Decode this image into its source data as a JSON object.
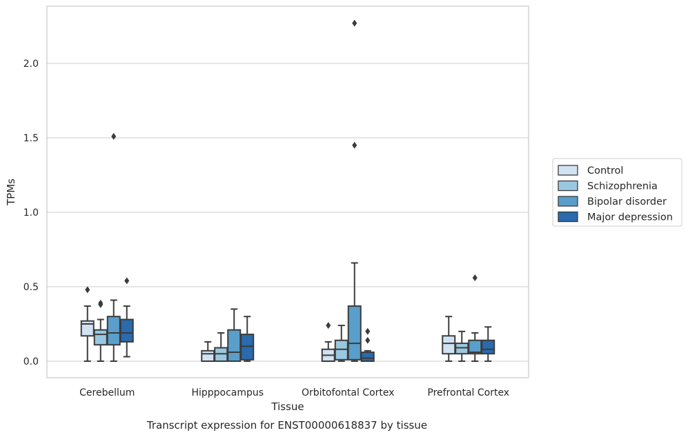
{
  "chart_data": {
    "type": "box",
    "title": "",
    "caption": "Transcript expression for ENST00000618837 by tissue",
    "xlabel": "Tissue",
    "ylabel": "TPMs",
    "ylim": [
      -0.11,
      2.4
    ],
    "yticks": [
      0.0,
      0.5,
      1.0,
      1.5,
      2.0
    ],
    "ytick_labels": [
      "0.0",
      "0.5",
      "1.0",
      "1.5",
      "2.0"
    ],
    "grid": "horizontal",
    "legend_position": "right",
    "categories": [
      "Cerebellum",
      "Hipppocampus",
      "Orbitofontal Cortex",
      "Prefrontal Cortex"
    ],
    "series": [
      {
        "name": "Control",
        "color": "#d1e2f2",
        "boxes": [
          {
            "whislo": 0.0,
            "q1": 0.17,
            "med": 0.25,
            "q3": 0.27,
            "whishi": 0.37,
            "fliers": [
              0.48
            ]
          },
          {
            "whislo": 0.0,
            "q1": 0.0,
            "med": 0.05,
            "q3": 0.07,
            "whishi": 0.13,
            "fliers": []
          },
          {
            "whislo": 0.0,
            "q1": 0.0,
            "med": 0.04,
            "q3": 0.08,
            "whishi": 0.13,
            "fliers": [
              0.24
            ]
          },
          {
            "whislo": 0.0,
            "q1": 0.05,
            "med": 0.12,
            "q3": 0.17,
            "whishi": 0.3,
            "fliers": []
          }
        ]
      },
      {
        "name": "Schizophrenia",
        "color": "#9ac8e0",
        "boxes": [
          {
            "whislo": 0.0,
            "q1": 0.11,
            "med": 0.18,
            "q3": 0.21,
            "whishi": 0.28,
            "fliers": [
              0.38,
              0.39
            ]
          },
          {
            "whislo": 0.0,
            "q1": 0.0,
            "med": 0.05,
            "q3": 0.09,
            "whishi": 0.19,
            "fliers": []
          },
          {
            "whislo": 0.0,
            "q1": 0.01,
            "med": 0.08,
            "q3": 0.14,
            "whishi": 0.24,
            "fliers": []
          },
          {
            "whislo": 0.0,
            "q1": 0.05,
            "med": 0.09,
            "q3": 0.12,
            "whishi": 0.2,
            "fliers": []
          }
        ]
      },
      {
        "name": "Bipolar disorder",
        "color": "#5a9fcb",
        "boxes": [
          {
            "whislo": 0.0,
            "q1": 0.11,
            "med": 0.19,
            "q3": 0.3,
            "whishi": 0.41,
            "fliers": [
              1.51
            ]
          },
          {
            "whislo": 0.0,
            "q1": 0.0,
            "med": 0.06,
            "q3": 0.21,
            "whishi": 0.35,
            "fliers": []
          },
          {
            "whislo": 0.0,
            "q1": 0.01,
            "med": 0.12,
            "q3": 0.37,
            "whishi": 0.66,
            "fliers": [
              1.45,
              2.27
            ]
          },
          {
            "whislo": 0.0,
            "q1": 0.05,
            "med": 0.06,
            "q3": 0.14,
            "whishi": 0.19,
            "fliers": [
              0.56
            ]
          }
        ]
      },
      {
        "name": "Major depression",
        "color": "#2a6aad",
        "boxes": [
          {
            "whislo": 0.03,
            "q1": 0.13,
            "med": 0.19,
            "q3": 0.28,
            "whishi": 0.37,
            "fliers": [
              0.54
            ]
          },
          {
            "whislo": 0.0,
            "q1": 0.01,
            "med": 0.1,
            "q3": 0.18,
            "whishi": 0.3,
            "fliers": []
          },
          {
            "whislo": 0.0,
            "q1": 0.0,
            "med": 0.02,
            "q3": 0.06,
            "whishi": 0.07,
            "fliers": [
              0.14,
              0.2
            ]
          },
          {
            "whislo": 0.0,
            "q1": 0.05,
            "med": 0.08,
            "q3": 0.14,
            "whishi": 0.23,
            "fliers": []
          }
        ]
      }
    ]
  }
}
